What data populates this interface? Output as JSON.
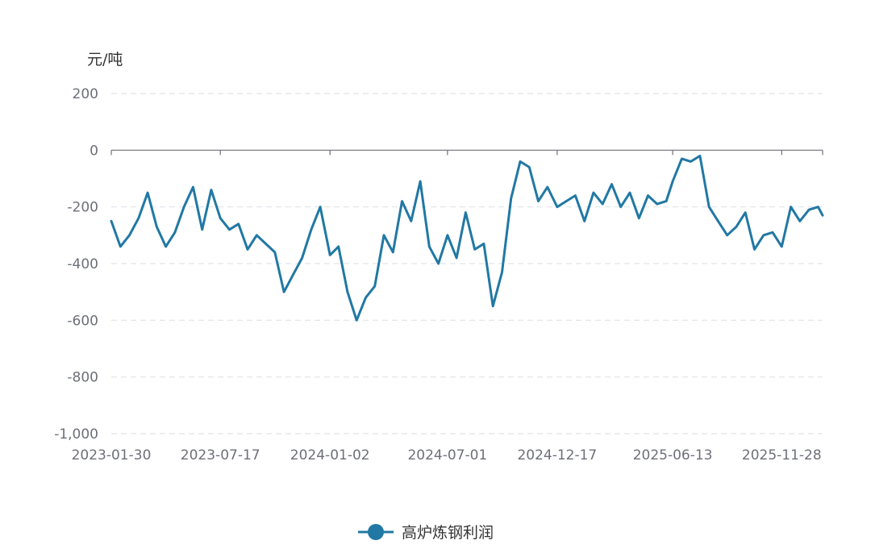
{
  "chart_data": {
    "type": "line",
    "ylabel": "元/吨",
    "ylim": [
      -1000,
      200
    ],
    "yticks": [
      200,
      0,
      -200,
      -400,
      -600,
      -800,
      -1000
    ],
    "ytick_labels": [
      "200",
      "0",
      "-200",
      "-400",
      "-600",
      "-800",
      "-1,000"
    ],
    "xlim": [
      "2023-01-30",
      "2026-01-30"
    ],
    "xtick_labels": [
      "2023-01-30",
      "2023-07-17",
      "2024-01-02",
      "2024-07-01",
      "2024-12-17",
      "2025-06-13",
      "2025-11-28"
    ],
    "grid": true,
    "legend_position": "bottom-center",
    "series": [
      {
        "name": "高炉炼钢利润",
        "color": "#2178a4",
        "x": [
          "2023-01-30",
          "2023-02-13",
          "2023-02-27",
          "2023-03-13",
          "2023-03-27",
          "2023-04-10",
          "2023-04-24",
          "2023-05-08",
          "2023-05-22",
          "2023-06-05",
          "2023-06-19",
          "2023-07-03",
          "2023-07-17",
          "2023-07-31",
          "2023-08-14",
          "2023-08-28",
          "2023-09-11",
          "2023-09-25",
          "2023-10-09",
          "2023-10-23",
          "2023-11-06",
          "2023-11-20",
          "2023-12-04",
          "2023-12-18",
          "2024-01-02",
          "2024-01-15",
          "2024-01-29",
          "2024-02-12",
          "2024-02-26",
          "2024-03-11",
          "2024-03-25",
          "2024-04-08",
          "2024-04-22",
          "2024-05-06",
          "2024-05-20",
          "2024-06-03",
          "2024-06-17",
          "2024-07-01",
          "2024-07-15",
          "2024-07-29",
          "2024-08-12",
          "2024-08-26",
          "2024-09-09",
          "2024-09-23",
          "2024-10-07",
          "2024-10-21",
          "2024-11-04",
          "2024-11-18",
          "2024-12-02",
          "2024-12-17",
          "2024-12-31",
          "2025-01-14",
          "2025-01-28",
          "2025-02-11",
          "2025-02-25",
          "2025-03-11",
          "2025-03-25",
          "2025-04-08",
          "2025-04-22",
          "2025-05-06",
          "2025-05-20",
          "2025-06-03",
          "2025-06-13",
          "2025-06-27",
          "2025-07-11",
          "2025-07-25",
          "2025-08-08",
          "2025-08-22",
          "2025-09-05",
          "2025-09-19",
          "2025-10-03",
          "2025-10-17",
          "2025-10-31",
          "2025-11-14",
          "2025-11-28",
          "2025-12-12",
          "2025-12-26",
          "2026-01-09",
          "2026-01-23",
          "2026-01-30"
        ],
        "values": [
          -250,
          -340,
          -300,
          -240,
          -150,
          -270,
          -340,
          -290,
          -200,
          -130,
          -280,
          -140,
          -240,
          -280,
          -260,
          -350,
          -300,
          -330,
          -360,
          -500,
          -440,
          -380,
          -280,
          -200,
          -370,
          -340,
          -500,
          -600,
          -520,
          -480,
          -300,
          -360,
          -180,
          -250,
          -110,
          -340,
          -400,
          -300,
          -380,
          -220,
          -350,
          -330,
          -550,
          -430,
          -170,
          -40,
          -60,
          -180,
          -130,
          -200,
          -180,
          -160,
          -250,
          -150,
          -190,
          -120,
          -200,
          -150,
          -240,
          -160,
          -190,
          -180,
          -110,
          -30,
          -40,
          -20,
          -200,
          -250,
          -300,
          -270,
          -220,
          -350,
          -300,
          -290,
          -340,
          -200,
          -250,
          -210,
          -200,
          -230
        ]
      }
    ]
  }
}
